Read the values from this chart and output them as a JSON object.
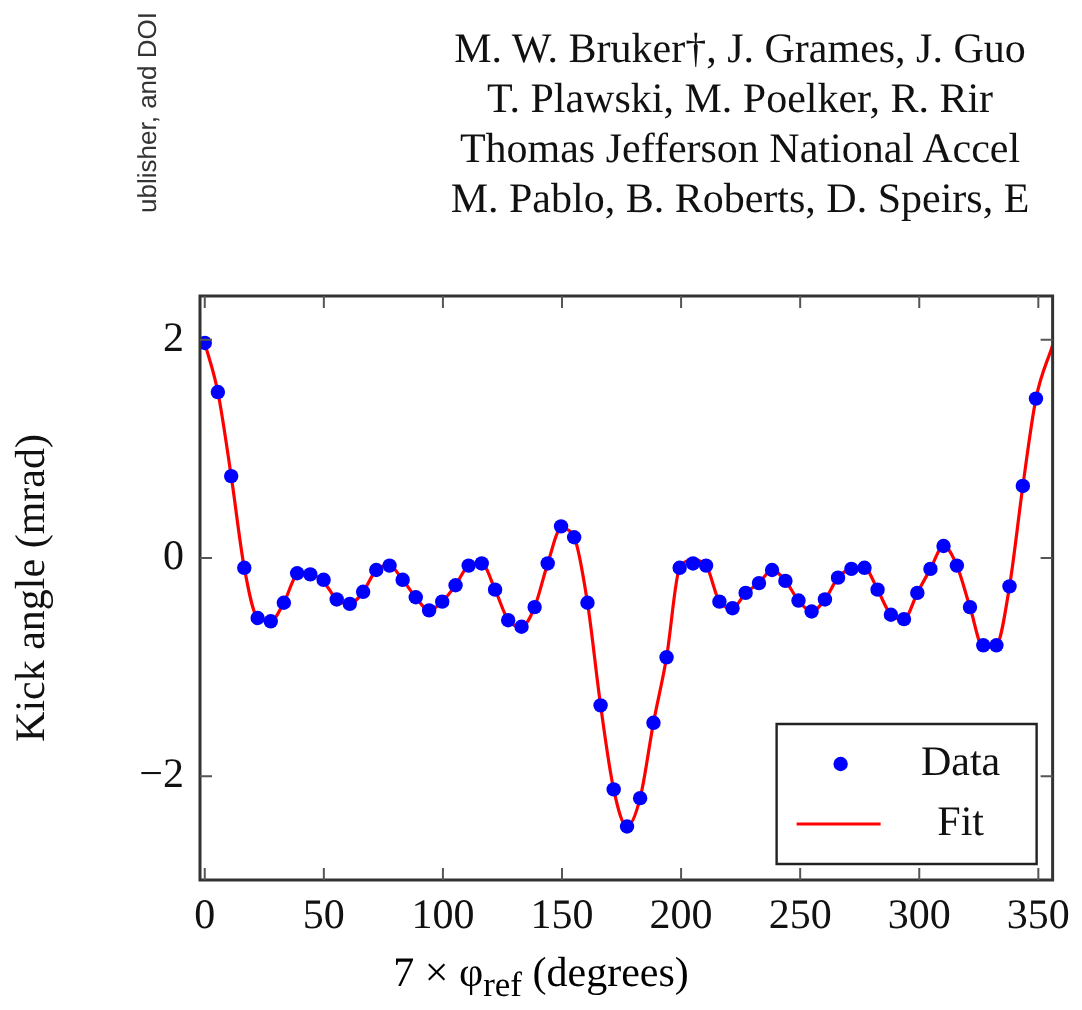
{
  "chart_data": {
    "type": "scatter",
    "xlabel": "7 × φ$_{ref}$ (degrees)",
    "ylabel": "Kick angle (mrad)",
    "annotations": [
      "ublisher, and DOI",
      "M. W. Bruker†, J. Grames, J. Guo",
      "T. Plawski, M. Poelker, R. Rir",
      "Thomas Jefferson National Accel",
      "M. Pablo, B. Roberts, D. Speirs, E"
    ],
    "xlim": [
      -2,
      356
    ],
    "xticks": [
      0,
      50,
      100,
      150,
      200,
      250,
      300,
      350
    ],
    "ylim": [
      -2.95,
      2.4
    ],
    "yticks": [
      -2,
      0,
      2
    ],
    "grid": false,
    "legend": "bottom right",
    "series": [
      {
        "name": "Data",
        "marker": "circle",
        "color": "#0000ff",
        "x": [
          0,
          5.5,
          11.1,
          16.6,
          22.2,
          27.7,
          33.2,
          38.8,
          44.3,
          49.9,
          55.4,
          60.9,
          66.5,
          72,
          77.6,
          83.1,
          88.6,
          94.2,
          99.7,
          105.3,
          110.8,
          116.3,
          121.9,
          127.4,
          133,
          138.5,
          144,
          149.6,
          155.1,
          160.7,
          166.2,
          171.7,
          177.3,
          182.8,
          188.4,
          193.9,
          199.4,
          205,
          210.5,
          216.1,
          221.6,
          227.1,
          232.7,
          238.2,
          243.8,
          249.3,
          254.8,
          260.4,
          265.9,
          271.5,
          277,
          282.5,
          288.1,
          293.6,
          299.2,
          304.7,
          310.2,
          315.8,
          321.3,
          326.9,
          332.4,
          337.9,
          343.5,
          349
        ],
        "values": [
          1.97,
          1.52,
          0.75,
          -0.09,
          -0.55,
          -0.58,
          -0.41,
          -0.14,
          -0.15,
          -0.2,
          -0.38,
          -0.42,
          -0.31,
          -0.11,
          -0.07,
          -0.2,
          -0.36,
          -0.48,
          -0.4,
          -0.25,
          -0.07,
          -0.05,
          -0.29,
          -0.57,
          -0.63,
          -0.45,
          -0.05,
          0.29,
          0.19,
          -0.41,
          -1.35,
          -2.12,
          -2.46,
          -2.2,
          -1.51,
          -0.91,
          -0.09,
          -0.05,
          -0.07,
          -0.4,
          -0.46,
          -0.32,
          -0.23,
          -0.11,
          -0.21,
          -0.39,
          -0.49,
          -0.38,
          -0.18,
          -0.1,
          -0.09,
          -0.29,
          -0.52,
          -0.56,
          -0.32,
          -0.1,
          0.11,
          -0.07,
          -0.45,
          -0.8,
          -0.8,
          -0.26,
          0.66,
          1.46
        ]
      },
      {
        "name": "Fit",
        "type": "line",
        "marker": "none",
        "color": "#ff0000",
        "line_style": "solid",
        "x": [
          0,
          5.5,
          11.1,
          16.6,
          22.2,
          27.7,
          33.2,
          38.8,
          44.3,
          49.9,
          55.4,
          60.9,
          66.5,
          72,
          77.6,
          83.1,
          88.6,
          94.2,
          99.7,
          105.3,
          110.8,
          116.3,
          121.9,
          127.4,
          133,
          138.5,
          144,
          149.6,
          155.1,
          160.7,
          166.2,
          171.7,
          177.3,
          182.8,
          188.4,
          193.9,
          199.4,
          205,
          210.5,
          216.1,
          221.6,
          227.1,
          232.7,
          238.2,
          243.8,
          249.3,
          254.8,
          260.4,
          265.9,
          271.5,
          277,
          282.5,
          288.1,
          293.6,
          299.2,
          304.7,
          310.2,
          315.8,
          321.3,
          326.9,
          332.4,
          337.9,
          343.5,
          349,
          356
        ],
        "values": [
          1.97,
          1.52,
          0.75,
          -0.09,
          -0.55,
          -0.58,
          -0.41,
          -0.16,
          -0.15,
          -0.22,
          -0.38,
          -0.42,
          -0.31,
          -0.11,
          -0.07,
          -0.2,
          -0.36,
          -0.48,
          -0.4,
          -0.25,
          -0.07,
          -0.05,
          -0.29,
          -0.57,
          -0.63,
          -0.45,
          -0.05,
          0.27,
          0.19,
          -0.41,
          -1.35,
          -2.12,
          -2.46,
          -2.2,
          -1.51,
          -0.91,
          -0.09,
          -0.02,
          -0.07,
          -0.4,
          -0.46,
          -0.32,
          -0.23,
          -0.11,
          -0.21,
          -0.39,
          -0.49,
          -0.38,
          -0.18,
          -0.1,
          -0.09,
          -0.29,
          -0.52,
          -0.56,
          -0.32,
          -0.1,
          0.11,
          -0.07,
          -0.45,
          -0.82,
          -0.8,
          -0.26,
          0.66,
          1.46,
          1.95
        ]
      }
    ]
  }
}
